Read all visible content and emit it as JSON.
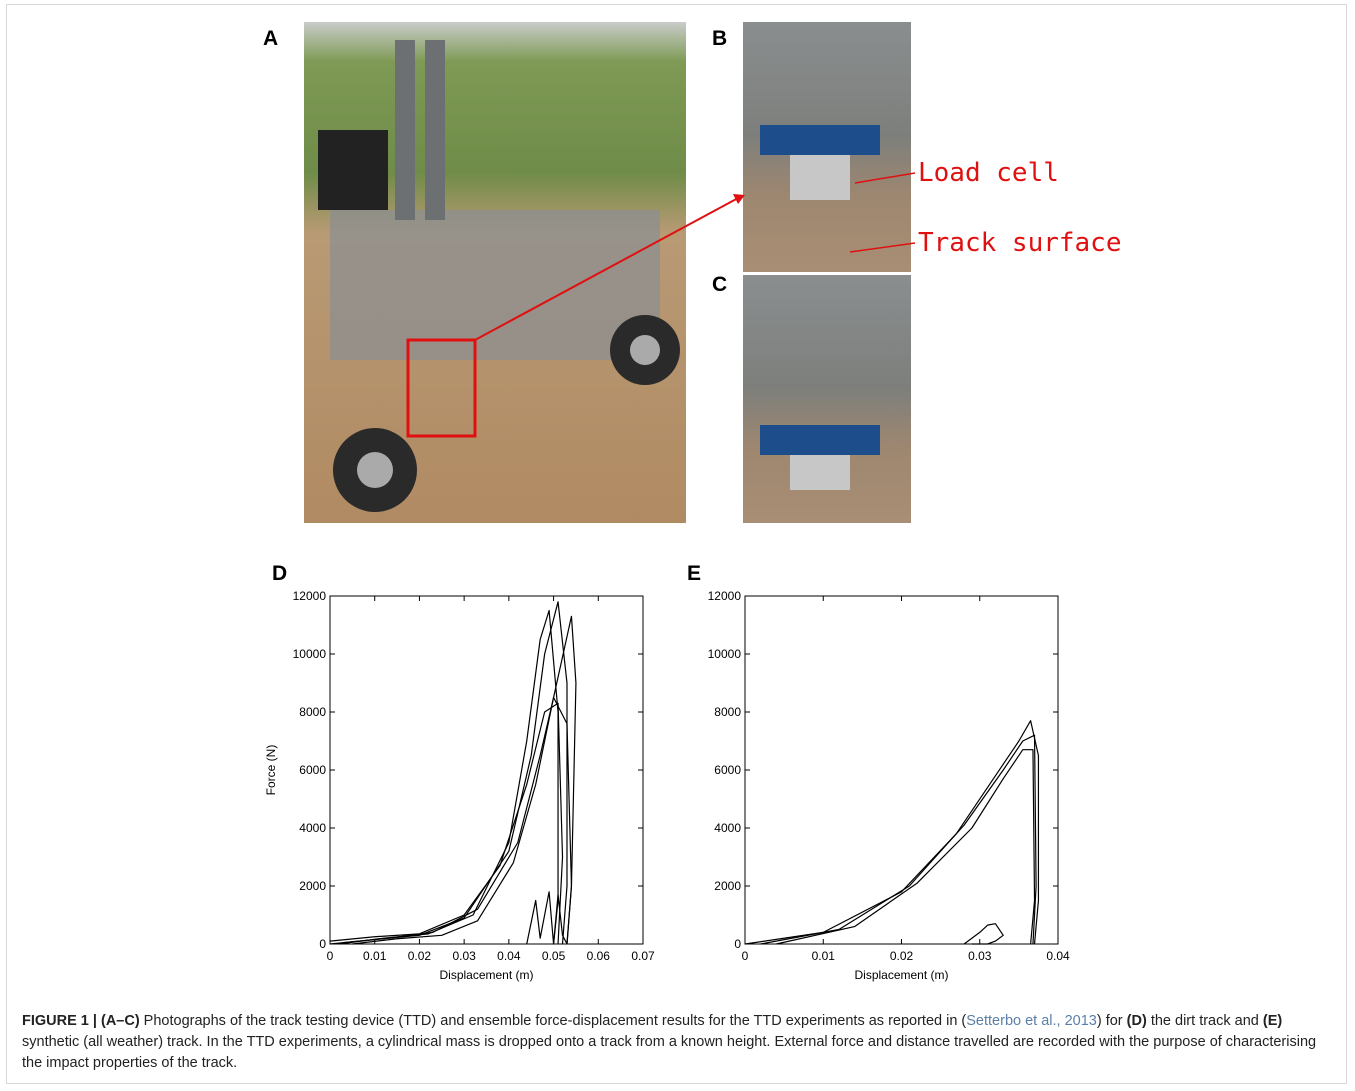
{
  "photos": {
    "labels": [
      "A",
      "B",
      "C"
    ],
    "annotations": [
      "Load cell",
      "Track surface"
    ]
  },
  "chart_data": [
    {
      "type": "line",
      "panel": "D",
      "xlabel": "Displacement (m)",
      "ylabel": "Force (N)",
      "xlim": [
        0,
        0.07
      ],
      "ylim": [
        0,
        12000
      ],
      "xticks": [
        0,
        0.01,
        0.02,
        0.03,
        0.04,
        0.05,
        0.06,
        0.07
      ],
      "yticks": [
        0,
        2000,
        4000,
        6000,
        8000,
        10000,
        12000
      ],
      "series": [
        {
          "color": "#000000",
          "x": [
            0,
            0.01,
            0.02,
            0.03,
            0.04,
            0.045,
            0.048,
            0.051,
            0.053,
            0.053,
            0.052
          ],
          "values": [
            0,
            150,
            300,
            900,
            3200,
            6500,
            10000,
            11800,
            9000,
            2000,
            0
          ]
        },
        {
          "color": "#000000",
          "x": [
            0.002,
            0.012,
            0.022,
            0.032,
            0.04,
            0.044,
            0.047,
            0.049,
            0.051,
            0.051,
            0.05
          ],
          "values": [
            0,
            200,
            350,
            1000,
            3500,
            7000,
            10500,
            11500,
            8000,
            1500,
            0
          ]
        },
        {
          "color": "#000000",
          "x": [
            0.005,
            0.015,
            0.025,
            0.033,
            0.041,
            0.046,
            0.05,
            0.054,
            0.055,
            0.054,
            0.053
          ],
          "values": [
            0,
            180,
            300,
            800,
            2800,
            5500,
            8500,
            11300,
            9000,
            2000,
            0
          ]
        },
        {
          "color": "#000000",
          "x": [
            0.003,
            0.013,
            0.023,
            0.033,
            0.042,
            0.047,
            0.05,
            0.053,
            0.054,
            0.053
          ],
          "values": [
            50,
            200,
            400,
            1200,
            3500,
            6500,
            8500,
            7600,
            2000,
            0
          ]
        },
        {
          "color": "#000000",
          "x": [
            0,
            0.01,
            0.02,
            0.03,
            0.038,
            0.044,
            0.048,
            0.051,
            0.052,
            0.051
          ],
          "values": [
            100,
            250,
            350,
            1000,
            2700,
            5500,
            8000,
            8300,
            3000,
            0
          ]
        },
        {
          "color": "#000000",
          "x": [
            0.044,
            0.046,
            0.047,
            0.049,
            0.05,
            0.051,
            0.052,
            0.053
          ],
          "values": [
            0,
            1500,
            200,
            1800,
            0,
            1700,
            300,
            0
          ]
        }
      ]
    },
    {
      "type": "line",
      "panel": "E",
      "xlabel": "Displacement (m)",
      "xlim": [
        0,
        0.04
      ],
      "ylim": [
        0,
        12000
      ],
      "xticks": [
        0,
        0.01,
        0.02,
        0.03,
        0.04
      ],
      "yticks": [
        0,
        2000,
        4000,
        6000,
        8000,
        10000,
        12000
      ],
      "series": [
        {
          "color": "#000000",
          "x": [
            0,
            0.01,
            0.02,
            0.027,
            0.032,
            0.035,
            0.0365,
            0.0375,
            0.0375,
            0.037
          ],
          "values": [
            0,
            400,
            1800,
            3800,
            5800,
            7000,
            7700,
            6500,
            1500,
            0
          ]
        },
        {
          "color": "#000000",
          "x": [
            0.002,
            0.012,
            0.021,
            0.028,
            0.033,
            0.0355,
            0.037,
            0.0372,
            0.0368
          ],
          "values": [
            0,
            500,
            2000,
            4100,
            6000,
            7000,
            7200,
            2000,
            0
          ]
        },
        {
          "color": "#000000",
          "x": [
            0.004,
            0.014,
            0.022,
            0.029,
            0.033,
            0.0355,
            0.0368,
            0.037,
            0.0365
          ],
          "values": [
            0,
            600,
            2100,
            4000,
            5700,
            6700,
            6700,
            1500,
            0
          ]
        },
        {
          "color": "#000000",
          "x": [
            0.028,
            0.03,
            0.031,
            0.032,
            0.033,
            0.032,
            0.031,
            0.029
          ],
          "values": [
            0,
            400,
            650,
            700,
            300,
            100,
            0,
            0
          ]
        }
      ]
    }
  ],
  "caption": [
    "FIGURE 1 | (A–C)",
    " Photographs of the track testing device (TTD) and ensemble force-displacement results for the TTD experiments as reported in (",
    "Setterbo et al., 2013",
    ") for ",
    "(D)",
    " the dirt track and ",
    "(E)",
    " synthetic (all weather) track. In the TTD experiments, a cylindrical mass is dropped onto a track from a known height. External force and distance travelled are recorded with the purpose of characterising the impact properties of the track."
  ]
}
